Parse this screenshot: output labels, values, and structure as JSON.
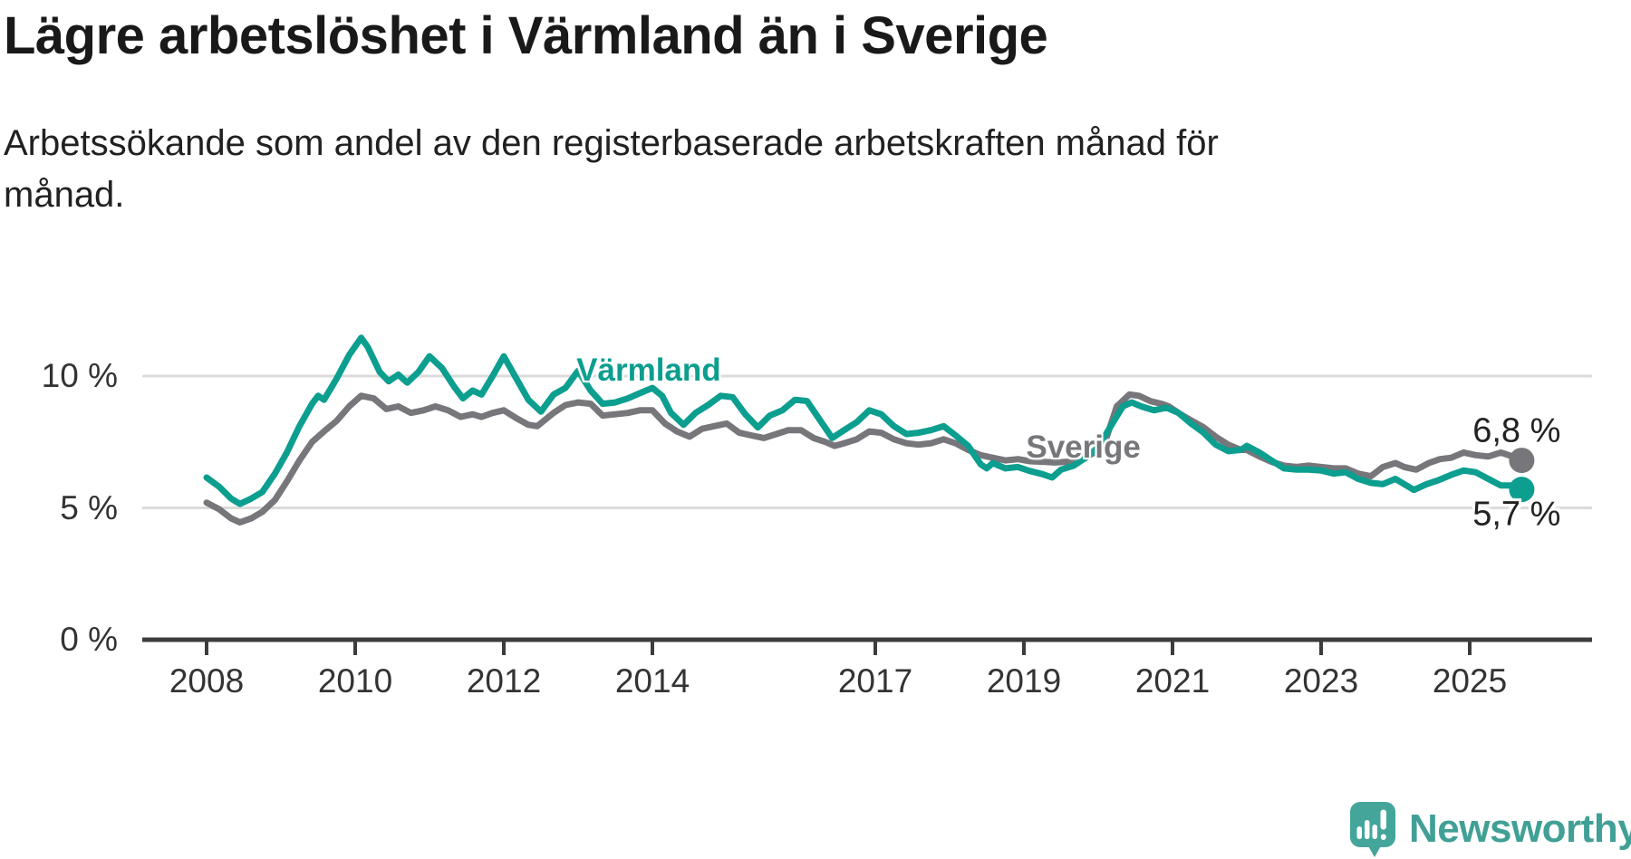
{
  "header": {
    "title": "Lägre arbetslöshet i Värmland än i Sverige",
    "subtitle": "Arbetssökande som andel av den registerbaserade arbetskraften månad för månad."
  },
  "footer": {
    "brand": "Newsworthy",
    "brand_color": "#40A096"
  },
  "chart_data": {
    "type": "line",
    "unit": "%",
    "grid": "horizontal-only",
    "x_axis": {
      "ticks": [
        2008,
        2010,
        2012,
        2014,
        2017,
        2019,
        2021,
        2023,
        2025
      ],
      "range": [
        2007.1,
        2026.6
      ]
    },
    "y_axis": {
      "ticks": [
        0,
        5,
        10
      ],
      "label_format": "{v} %",
      "range": [
        0,
        12.6
      ]
    },
    "colors": {
      "gridline": "#DBDBDB",
      "axis": "#3C3C3C",
      "tick_text": "#333333"
    },
    "series": [
      {
        "name": "Sverige",
        "slug": "sverige",
        "color": "#76767B",
        "end_label": "6,8 %",
        "end_value": 6.8,
        "inline_label_pos": {
          "year": 2019.8,
          "value": 7.28
        },
        "end_label_offset_pct": 1.1,
        "points": [
          [
            2008.0,
            5.2
          ],
          [
            2008.17,
            4.95
          ],
          [
            2008.33,
            4.6
          ],
          [
            2008.45,
            4.45
          ],
          [
            2008.6,
            4.6
          ],
          [
            2008.75,
            4.85
          ],
          [
            2008.92,
            5.3
          ],
          [
            2009.08,
            6.0
          ],
          [
            2009.25,
            6.8
          ],
          [
            2009.42,
            7.5
          ],
          [
            2009.58,
            7.9
          ],
          [
            2009.75,
            8.3
          ],
          [
            2009.92,
            8.85
          ],
          [
            2010.08,
            9.25
          ],
          [
            2010.25,
            9.15
          ],
          [
            2010.42,
            8.75
          ],
          [
            2010.58,
            8.85
          ],
          [
            2010.75,
            8.6
          ],
          [
            2010.92,
            8.7
          ],
          [
            2011.08,
            8.85
          ],
          [
            2011.25,
            8.7
          ],
          [
            2011.42,
            8.45
          ],
          [
            2011.58,
            8.55
          ],
          [
            2011.7,
            8.45
          ],
          [
            2011.85,
            8.6
          ],
          [
            2012.0,
            8.7
          ],
          [
            2012.17,
            8.4
          ],
          [
            2012.33,
            8.15
          ],
          [
            2012.45,
            8.1
          ],
          [
            2012.67,
            8.6
          ],
          [
            2012.83,
            8.9
          ],
          [
            2013.0,
            9.0
          ],
          [
            2013.17,
            8.95
          ],
          [
            2013.33,
            8.5
          ],
          [
            2013.5,
            8.55
          ],
          [
            2013.67,
            8.6
          ],
          [
            2013.83,
            8.7
          ],
          [
            2014.0,
            8.7
          ],
          [
            2014.17,
            8.2
          ],
          [
            2014.33,
            7.9
          ],
          [
            2014.5,
            7.7
          ],
          [
            2014.67,
            8.0
          ],
          [
            2014.83,
            8.1
          ],
          [
            2015.0,
            8.2
          ],
          [
            2015.17,
            7.85
          ],
          [
            2015.33,
            7.75
          ],
          [
            2015.5,
            7.65
          ],
          [
            2015.67,
            7.8
          ],
          [
            2015.83,
            7.95
          ],
          [
            2016.0,
            7.95
          ],
          [
            2016.17,
            7.65
          ],
          [
            2016.33,
            7.5
          ],
          [
            2016.45,
            7.35
          ],
          [
            2016.58,
            7.45
          ],
          [
            2016.75,
            7.6
          ],
          [
            2016.92,
            7.9
          ],
          [
            2017.08,
            7.85
          ],
          [
            2017.25,
            7.6
          ],
          [
            2017.42,
            7.45
          ],
          [
            2017.58,
            7.4
          ],
          [
            2017.75,
            7.45
          ],
          [
            2017.92,
            7.6
          ],
          [
            2018.08,
            7.45
          ],
          [
            2018.25,
            7.2
          ],
          [
            2018.42,
            7.0
          ],
          [
            2018.58,
            6.9
          ],
          [
            2018.75,
            6.8
          ],
          [
            2018.92,
            6.85
          ],
          [
            2019.08,
            6.77
          ],
          [
            2019.25,
            6.75
          ],
          [
            2019.42,
            6.72
          ],
          [
            2019.58,
            6.75
          ],
          [
            2019.75,
            6.85
          ],
          [
            2019.92,
            7.05
          ],
          [
            2020.08,
            7.4
          ],
          [
            2020.25,
            8.85
          ],
          [
            2020.42,
            9.3
          ],
          [
            2020.55,
            9.25
          ],
          [
            2020.7,
            9.05
          ],
          [
            2020.85,
            8.95
          ],
          [
            2020.95,
            8.85
          ],
          [
            2021.08,
            8.6
          ],
          [
            2021.2,
            8.4
          ],
          [
            2021.42,
            8.05
          ],
          [
            2021.58,
            7.7
          ],
          [
            2021.75,
            7.4
          ],
          [
            2021.92,
            7.2
          ],
          [
            2022.0,
            7.2
          ],
          [
            2022.17,
            6.95
          ],
          [
            2022.33,
            6.75
          ],
          [
            2022.5,
            6.6
          ],
          [
            2022.67,
            6.55
          ],
          [
            2022.83,
            6.6
          ],
          [
            2023.0,
            6.55
          ],
          [
            2023.17,
            6.5
          ],
          [
            2023.33,
            6.5
          ],
          [
            2023.5,
            6.3
          ],
          [
            2023.67,
            6.2
          ],
          [
            2023.83,
            6.55
          ],
          [
            2024.0,
            6.7
          ],
          [
            2024.12,
            6.55
          ],
          [
            2024.28,
            6.45
          ],
          [
            2024.45,
            6.7
          ],
          [
            2024.6,
            6.85
          ],
          [
            2024.75,
            6.9
          ],
          [
            2024.92,
            7.1
          ],
          [
            2025.08,
            7.0
          ],
          [
            2025.25,
            6.95
          ],
          [
            2025.42,
            7.1
          ],
          [
            2025.58,
            6.95
          ],
          [
            2025.7,
            6.8
          ]
        ]
      },
      {
        "name": "Värmland",
        "slug": "varmland",
        "color": "#0C9E8F",
        "end_label": "5,7 %",
        "end_value": 5.7,
        "inline_label_pos": {
          "year": 2013.95,
          "value": 10.2
        },
        "end_label_offset_pct": -0.95,
        "points": [
          [
            2008.0,
            6.15
          ],
          [
            2008.17,
            5.8
          ],
          [
            2008.33,
            5.35
          ],
          [
            2008.45,
            5.15
          ],
          [
            2008.6,
            5.35
          ],
          [
            2008.75,
            5.6
          ],
          [
            2008.92,
            6.3
          ],
          [
            2009.08,
            7.1
          ],
          [
            2009.25,
            8.1
          ],
          [
            2009.42,
            8.95
          ],
          [
            2009.5,
            9.25
          ],
          [
            2009.58,
            9.1
          ],
          [
            2009.75,
            9.9
          ],
          [
            2009.92,
            10.8
          ],
          [
            2010.08,
            11.45
          ],
          [
            2010.17,
            11.1
          ],
          [
            2010.33,
            10.15
          ],
          [
            2010.45,
            9.8
          ],
          [
            2010.58,
            10.05
          ],
          [
            2010.7,
            9.75
          ],
          [
            2010.85,
            10.15
          ],
          [
            2011.0,
            10.75
          ],
          [
            2011.17,
            10.3
          ],
          [
            2011.33,
            9.6
          ],
          [
            2011.45,
            9.15
          ],
          [
            2011.58,
            9.45
          ],
          [
            2011.7,
            9.3
          ],
          [
            2011.85,
            10.0
          ],
          [
            2012.0,
            10.75
          ],
          [
            2012.17,
            9.9
          ],
          [
            2012.33,
            9.1
          ],
          [
            2012.5,
            8.65
          ],
          [
            2012.67,
            9.3
          ],
          [
            2012.83,
            9.55
          ],
          [
            2013.0,
            10.2
          ],
          [
            2013.17,
            9.45
          ],
          [
            2013.33,
            8.95
          ],
          [
            2013.5,
            9.0
          ],
          [
            2013.67,
            9.15
          ],
          [
            2013.83,
            9.35
          ],
          [
            2014.0,
            9.55
          ],
          [
            2014.13,
            9.25
          ],
          [
            2014.25,
            8.6
          ],
          [
            2014.42,
            8.15
          ],
          [
            2014.58,
            8.6
          ],
          [
            2014.75,
            8.9
          ],
          [
            2014.92,
            9.25
          ],
          [
            2015.08,
            9.2
          ],
          [
            2015.25,
            8.55
          ],
          [
            2015.42,
            8.05
          ],
          [
            2015.58,
            8.5
          ],
          [
            2015.75,
            8.7
          ],
          [
            2015.92,
            9.1
          ],
          [
            2016.08,
            9.05
          ],
          [
            2016.25,
            8.35
          ],
          [
            2016.42,
            7.65
          ],
          [
            2016.58,
            7.95
          ],
          [
            2016.75,
            8.25
          ],
          [
            2016.92,
            8.7
          ],
          [
            2017.08,
            8.55
          ],
          [
            2017.25,
            8.1
          ],
          [
            2017.42,
            7.8
          ],
          [
            2017.58,
            7.85
          ],
          [
            2017.75,
            7.95
          ],
          [
            2017.92,
            8.1
          ],
          [
            2018.08,
            7.75
          ],
          [
            2018.25,
            7.35
          ],
          [
            2018.42,
            6.65
          ],
          [
            2018.5,
            6.5
          ],
          [
            2018.58,
            6.7
          ],
          [
            2018.75,
            6.5
          ],
          [
            2018.92,
            6.55
          ],
          [
            2019.08,
            6.4
          ],
          [
            2019.25,
            6.28
          ],
          [
            2019.38,
            6.15
          ],
          [
            2019.5,
            6.45
          ],
          [
            2019.67,
            6.6
          ],
          [
            2019.83,
            6.9
          ],
          [
            2020.0,
            7.3
          ],
          [
            2020.17,
            8.1
          ],
          [
            2020.33,
            8.85
          ],
          [
            2020.45,
            9.0
          ],
          [
            2020.58,
            8.85
          ],
          [
            2020.75,
            8.7
          ],
          [
            2020.92,
            8.8
          ],
          [
            2021.08,
            8.6
          ],
          [
            2021.25,
            8.2
          ],
          [
            2021.42,
            7.85
          ],
          [
            2021.58,
            7.4
          ],
          [
            2021.75,
            7.15
          ],
          [
            2021.92,
            7.2
          ],
          [
            2022.0,
            7.35
          ],
          [
            2022.17,
            7.1
          ],
          [
            2022.33,
            6.8
          ],
          [
            2022.5,
            6.5
          ],
          [
            2022.67,
            6.45
          ],
          [
            2022.83,
            6.45
          ],
          [
            2023.0,
            6.42
          ],
          [
            2023.17,
            6.3
          ],
          [
            2023.33,
            6.35
          ],
          [
            2023.5,
            6.1
          ],
          [
            2023.67,
            5.95
          ],
          [
            2023.83,
            5.9
          ],
          [
            2024.0,
            6.1
          ],
          [
            2024.25,
            5.68
          ],
          [
            2024.42,
            5.9
          ],
          [
            2024.58,
            6.05
          ],
          [
            2024.75,
            6.25
          ],
          [
            2024.92,
            6.42
          ],
          [
            2025.08,
            6.35
          ],
          [
            2025.25,
            6.1
          ],
          [
            2025.42,
            5.85
          ],
          [
            2025.58,
            5.85
          ],
          [
            2025.7,
            5.7
          ]
        ]
      }
    ]
  }
}
